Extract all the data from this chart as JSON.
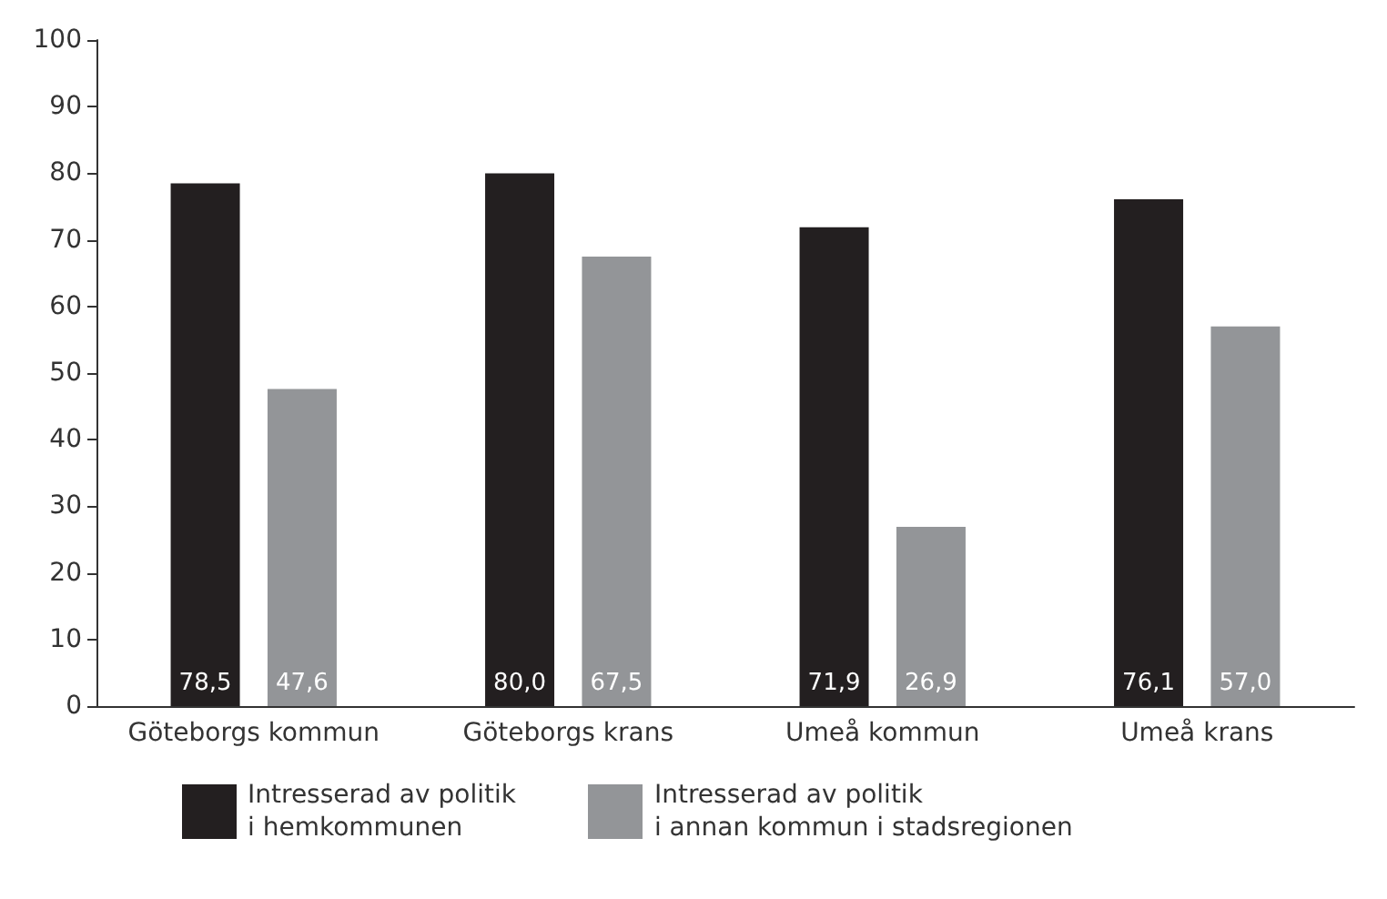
{
  "chart_data": {
    "type": "bar",
    "categories": [
      "Göteborgs kommun",
      "Göteborgs krans",
      "Umeå kommun",
      "Umeå krans"
    ],
    "series": [
      {
        "name": "Intresserad av politik\ni hemkommunen",
        "color": "#231f20",
        "values": [
          78.5,
          80.0,
          71.9,
          76.1
        ],
        "value_labels": [
          "78,5",
          "80,0",
          "71,9",
          "76,1"
        ]
      },
      {
        "name": "Intresserad av politik\ni annan kommun i stadsregionen",
        "color": "#939598",
        "values": [
          47.6,
          67.5,
          26.9,
          57.0
        ],
        "value_labels": [
          "47,6",
          "67,5",
          "26,9",
          "57,0"
        ]
      }
    ],
    "ylim": [
      0,
      100
    ],
    "yticks": [
      0,
      10,
      20,
      30,
      40,
      50,
      60,
      70,
      80,
      90,
      100
    ],
    "grid": false,
    "legend": "bottom"
  }
}
